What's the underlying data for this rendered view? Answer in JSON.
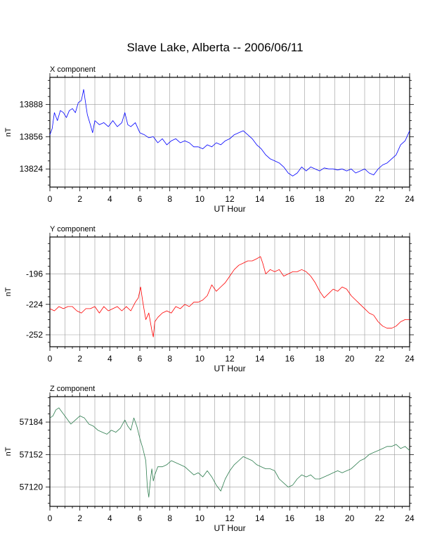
{
  "title": "Slave Lake, Alberta -- 2006/06/11",
  "chart_data": [
    {
      "type": "line",
      "subtitle": "X component",
      "color": "#0000ff",
      "xlabel": "UT Hour",
      "ylabel": "nT",
      "xlim": [
        0,
        24
      ],
      "ylim": [
        13806,
        13915
      ],
      "grid": true,
      "xticks": [
        "0",
        "2",
        "4",
        "6",
        "8",
        "10",
        "12",
        "14",
        "16",
        "18",
        "20",
        "22",
        "24"
      ],
      "yticks": [
        "13824",
        "13856",
        "13888"
      ],
      "ytick_values": [
        13824,
        13856,
        13888
      ],
      "series": [
        {
          "x": [
            0,
            0.15,
            0.3,
            0.5,
            0.7,
            0.9,
            1.1,
            1.3,
            1.5,
            1.7,
            1.9,
            2.1,
            2.25,
            2.35,
            2.5,
            2.7,
            2.85,
            3.0,
            3.3,
            3.6,
            3.9,
            4.2,
            4.5,
            4.8,
            5.0,
            5.2,
            5.4,
            5.7,
            6.0,
            6.3,
            6.6,
            6.9,
            7.2,
            7.5,
            7.8,
            8.1,
            8.4,
            8.7,
            9.0,
            9.3,
            9.6,
            9.9,
            10.2,
            10.5,
            10.8,
            11.1,
            11.4,
            11.7,
            12.0,
            12.3,
            12.6,
            12.9,
            13.2,
            13.5,
            13.8,
            14.1,
            14.4,
            14.7,
            15.0,
            15.3,
            15.6,
            15.9,
            16.2,
            16.5,
            16.8,
            17.1,
            17.4,
            17.7,
            18.0,
            18.3,
            18.6,
            18.9,
            19.2,
            19.5,
            19.8,
            20.1,
            20.4,
            20.7,
            21.0,
            21.3,
            21.6,
            21.9,
            22.2,
            22.5,
            22.8,
            23.1,
            23.4,
            23.7,
            24.0
          ],
          "y": [
            13858,
            13864,
            13880,
            13872,
            13882,
            13880,
            13875,
            13882,
            13884,
            13880,
            13890,
            13892,
            13903,
            13893,
            13878,
            13868,
            13860,
            13872,
            13868,
            13870,
            13866,
            13872,
            13866,
            13870,
            13880,
            13868,
            13866,
            13870,
            13860,
            13858,
            13855,
            13856,
            13850,
            13854,
            13848,
            13852,
            13854,
            13850,
            13852,
            13850,
            13846,
            13846,
            13844,
            13848,
            13846,
            13850,
            13848,
            13852,
            13854,
            13858,
            13860,
            13862,
            13858,
            13854,
            13848,
            13844,
            13838,
            13834,
            13832,
            13830,
            13826,
            13820,
            13817,
            13820,
            13826,
            13822,
            13826,
            13824,
            13822,
            13825,
            13824,
            13824,
            13823,
            13824,
            13822,
            13824,
            13820,
            13822,
            13824,
            13820,
            13818,
            13824,
            13828,
            13830,
            13834,
            13838,
            13848,
            13852,
            13862
          ]
        }
      ]
    },
    {
      "type": "line",
      "subtitle": "Y component",
      "color": "#ff0000",
      "xlabel": "UT Hour",
      "ylabel": "nT",
      "xlim": [
        0,
        24
      ],
      "ylim": [
        -263,
        -162
      ],
      "grid": true,
      "xticks": [
        "0",
        "2",
        "4",
        "6",
        "8",
        "10",
        "12",
        "14",
        "16",
        "18",
        "20",
        "22",
        "24"
      ],
      "yticks": [
        "-252",
        "-224",
        "-196"
      ],
      "ytick_values": [
        -252,
        -224,
        -196
      ],
      "series": [
        {
          "x": [
            0,
            0.3,
            0.6,
            0.9,
            1.2,
            1.5,
            1.8,
            2.1,
            2.4,
            2.7,
            3.0,
            3.3,
            3.6,
            3.9,
            4.2,
            4.5,
            4.8,
            5.1,
            5.4,
            5.7,
            5.9,
            6.05,
            6.2,
            6.4,
            6.6,
            6.8,
            6.9,
            7.0,
            7.2,
            7.5,
            7.8,
            8.1,
            8.4,
            8.7,
            9.0,
            9.3,
            9.6,
            9.9,
            10.2,
            10.5,
            10.8,
            11.1,
            11.4,
            11.7,
            12.0,
            12.3,
            12.6,
            12.9,
            13.2,
            13.5,
            13.8,
            14.05,
            14.2,
            14.4,
            14.7,
            15.0,
            15.3,
            15.6,
            15.9,
            16.2,
            16.5,
            16.8,
            17.1,
            17.4,
            17.7,
            18.0,
            18.3,
            18.6,
            18.9,
            19.2,
            19.5,
            19.8,
            20.1,
            20.4,
            20.7,
            21.0,
            21.3,
            21.6,
            21.9,
            22.2,
            22.5,
            22.8,
            23.1,
            23.4,
            23.7,
            24.0
          ],
          "y": [
            -228,
            -230,
            -226,
            -228,
            -226,
            -226,
            -230,
            -232,
            -228,
            -228,
            -226,
            -232,
            -226,
            -230,
            -228,
            -226,
            -230,
            -226,
            -230,
            -222,
            -218,
            -208,
            -222,
            -238,
            -232,
            -248,
            -254,
            -240,
            -236,
            -232,
            -230,
            -232,
            -226,
            -228,
            -224,
            -226,
            -222,
            -222,
            -220,
            -216,
            -206,
            -212,
            -208,
            -204,
            -198,
            -192,
            -188,
            -186,
            -184,
            -184,
            -182,
            -180,
            -186,
            -196,
            -192,
            -194,
            -192,
            -198,
            -196,
            -194,
            -194,
            -192,
            -194,
            -198,
            -204,
            -212,
            -218,
            -214,
            -210,
            -212,
            -208,
            -210,
            -216,
            -220,
            -224,
            -228,
            -232,
            -234,
            -240,
            -244,
            -246,
            -246,
            -244,
            -240,
            -238,
            -238
          ]
        }
      ]
    },
    {
      "type": "line",
      "subtitle": "Z component",
      "color": "#2e7d4f",
      "xlabel": "UT Hour",
      "ylabel": "nT",
      "xlim": [
        0,
        24
      ],
      "ylim": [
        57101,
        57209
      ],
      "grid": true,
      "xticks": [
        "0",
        "2",
        "4",
        "6",
        "8",
        "10",
        "12",
        "14",
        "16",
        "18",
        "20",
        "22",
        "24"
      ],
      "yticks": [
        "57120",
        "57152",
        "57184"
      ],
      "ytick_values": [
        57120,
        57152,
        57184
      ],
      "series": [
        {
          "x": [
            0,
            0.2,
            0.4,
            0.6,
            0.8,
            1.0,
            1.2,
            1.4,
            1.7,
            2.0,
            2.3,
            2.6,
            2.9,
            3.2,
            3.5,
            3.8,
            4.1,
            4.4,
            4.7,
            5.0,
            5.2,
            5.4,
            5.6,
            5.8,
            6.0,
            6.2,
            6.4,
            6.5,
            6.6,
            6.7,
            6.8,
            6.9,
            7.0,
            7.2,
            7.5,
            7.8,
            8.1,
            8.4,
            8.7,
            9.0,
            9.3,
            9.6,
            9.9,
            10.2,
            10.5,
            10.8,
            11.1,
            11.4,
            11.7,
            12.0,
            12.3,
            12.6,
            12.9,
            13.2,
            13.5,
            13.8,
            14.1,
            14.4,
            14.7,
            15.0,
            15.3,
            15.6,
            15.9,
            16.2,
            16.5,
            16.8,
            17.1,
            17.4,
            17.7,
            18.0,
            18.3,
            18.6,
            18.9,
            19.2,
            19.5,
            19.8,
            20.1,
            20.4,
            20.7,
            21.0,
            21.3,
            21.6,
            21.9,
            22.2,
            22.5,
            22.8,
            23.1,
            23.4,
            23.7,
            24.0
          ],
          "y": [
            57188,
            57190,
            57196,
            57198,
            57194,
            57190,
            57186,
            57182,
            57186,
            57190,
            57188,
            57182,
            57180,
            57176,
            57174,
            57172,
            57176,
            57174,
            57178,
            57186,
            57180,
            57176,
            57188,
            57180,
            57168,
            57158,
            57146,
            57120,
            57110,
            57126,
            57138,
            57126,
            57132,
            57140,
            57140,
            57142,
            57146,
            57144,
            57142,
            57140,
            57136,
            57132,
            57134,
            57130,
            57136,
            57130,
            57122,
            57116,
            57128,
            57136,
            57142,
            57146,
            57150,
            57148,
            57146,
            57142,
            57140,
            57138,
            57138,
            57136,
            57128,
            57124,
            57120,
            57122,
            57128,
            57132,
            57130,
            57132,
            57128,
            57128,
            57130,
            57132,
            57134,
            57136,
            57134,
            57136,
            57138,
            57142,
            57146,
            57148,
            57152,
            57154,
            57156,
            57158,
            57160,
            57160,
            57162,
            57158,
            57160,
            57156
          ]
        }
      ]
    }
  ]
}
